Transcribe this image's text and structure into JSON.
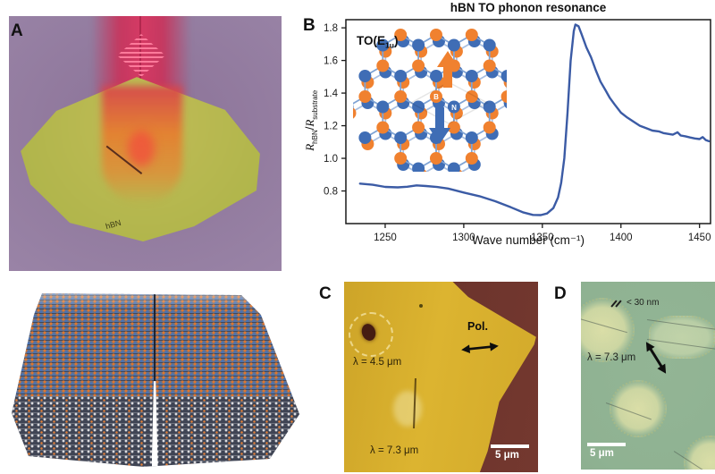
{
  "panels": {
    "a": {
      "label": "A",
      "flake_label": "hBN"
    },
    "b": {
      "label": "B",
      "title": "hBN TO phonon resonance",
      "xlabel": "Wave number (cm⁻¹)",
      "ylabel_r1": "R",
      "ylabel_sub1": "hBN",
      "ylabel_slash": "/",
      "ylabel_r2": "R",
      "ylabel_sub2": "substrate",
      "inset_to_prefix": "TO(E",
      "inset_to_sub": "1u",
      "inset_to_suffix": ")",
      "atom_b": "B",
      "atom_n": "N"
    },
    "c": {
      "label": "C",
      "annotation_top": "λ = 4.5 μm",
      "annotation_bottom": "λ = 7.3 μm",
      "pol_label": "Pol.",
      "scale_bar": "5 μm"
    },
    "d": {
      "label": "D",
      "thickness_label": "< 30 nm",
      "wavelength_label": "λ = 7.3 μm",
      "scale_bar": "5 μm"
    }
  },
  "colors": {
    "curve_blue": "#3b5ba5",
    "atom_orange": "#f0812f",
    "atom_blue": "#3f6db5",
    "bond_blue": "#7fa3d4",
    "flake_yellow": "#d4a92c",
    "substrate_maroon": "#6e352c",
    "d_background": "#8fb292",
    "a_background": "#97809f",
    "a_flake": "#b3b84c",
    "beam_red": "#d6315b"
  },
  "chart_data": {
    "type": "line",
    "title": "hBN TO phonon resonance",
    "xlabel": "Wave number (cm⁻¹)",
    "ylabel": "R_hBN / R_substrate",
    "xlim": [
      1225,
      1457
    ],
    "ylim": [
      0.6,
      1.85
    ],
    "xticks": [
      1250,
      1300,
      1350,
      1400,
      1450
    ],
    "yticks": [
      0.8,
      1.0,
      1.2,
      1.4,
      1.6,
      1.8
    ],
    "grid": false,
    "legend": "none",
    "series": [
      {
        "name": "R_hBN / R_substrate",
        "points": [
          [
            1234,
            0.845
          ],
          [
            1242,
            0.838
          ],
          [
            1250,
            0.825
          ],
          [
            1258,
            0.822
          ],
          [
            1264,
            0.826
          ],
          [
            1270,
            0.834
          ],
          [
            1276,
            0.83
          ],
          [
            1283,
            0.824
          ],
          [
            1290,
            0.815
          ],
          [
            1300,
            0.79
          ],
          [
            1310,
            0.768
          ],
          [
            1320,
            0.737
          ],
          [
            1330,
            0.7
          ],
          [
            1338,
            0.668
          ],
          [
            1344,
            0.653
          ],
          [
            1349,
            0.652
          ],
          [
            1353,
            0.662
          ],
          [
            1357,
            0.695
          ],
          [
            1360,
            0.76
          ],
          [
            1362,
            0.85
          ],
          [
            1364,
            1.0
          ],
          [
            1366,
            1.28
          ],
          [
            1368,
            1.6
          ],
          [
            1370,
            1.78
          ],
          [
            1371,
            1.82
          ],
          [
            1373,
            1.81
          ],
          [
            1375,
            1.76
          ],
          [
            1378,
            1.68
          ],
          [
            1381,
            1.62
          ],
          [
            1384,
            1.54
          ],
          [
            1387,
            1.47
          ],
          [
            1390,
            1.42
          ],
          [
            1393,
            1.37
          ],
          [
            1396,
            1.33
          ],
          [
            1400,
            1.28
          ],
          [
            1404,
            1.25
          ],
          [
            1408,
            1.225
          ],
          [
            1412,
            1.2
          ],
          [
            1416,
            1.185
          ],
          [
            1420,
            1.17
          ],
          [
            1424,
            1.165
          ],
          [
            1427,
            1.155
          ],
          [
            1430,
            1.15
          ],
          [
            1433,
            1.145
          ],
          [
            1436,
            1.16
          ],
          [
            1438,
            1.14
          ],
          [
            1441,
            1.135
          ],
          [
            1444,
            1.128
          ],
          [
            1447,
            1.122
          ],
          [
            1450,
            1.118
          ],
          [
            1452,
            1.13
          ],
          [
            1454,
            1.112
          ],
          [
            1456,
            1.105
          ]
        ]
      }
    ]
  }
}
